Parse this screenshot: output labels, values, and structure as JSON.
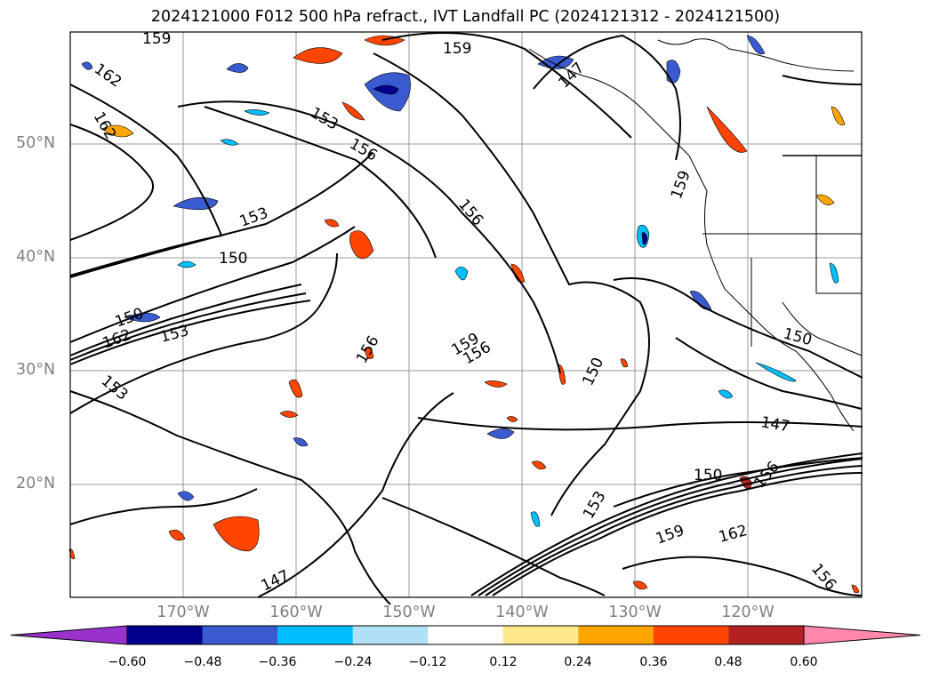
{
  "title": "2024121000 F012 500 hPa refract., IVT Landfall PC (2024121312 - 2024121500)",
  "map": {
    "lat_labels": [
      "50°N",
      "40°N",
      "30°N",
      "20°N"
    ],
    "lon_labels": [
      "170°W",
      "160°W",
      "150°W",
      "140°W",
      "130°W",
      "120°W"
    ],
    "contour_labels": [
      "159",
      "162",
      "162",
      "153",
      "156",
      "159",
      "156",
      "153",
      "150",
      "150",
      "162",
      "153",
      "153",
      "156",
      "159",
      "156",
      "150",
      "147",
      "159",
      "150",
      "147",
      "150",
      "156",
      "153",
      "159",
      "162",
      "156",
      "147"
    ],
    "contour_levels": [
      147,
      150,
      153,
      156,
      159,
      162
    ],
    "extent": {
      "lon_min": -180,
      "lon_max": -110,
      "lat_min": 10,
      "lat_max": 60
    }
  },
  "colorbar": {
    "ticks": [
      "−0.60",
      "−0.48",
      "−0.36",
      "−0.24",
      "−0.12",
      "0.12",
      "0.24",
      "0.36",
      "0.48",
      "0.60"
    ],
    "colors": [
      "#9932cc",
      "#00008b",
      "#3a5bd0",
      "#00bfff",
      "#b0e0f6",
      "#ffffff",
      "#ffe88a",
      "#ffa500",
      "#ff4500",
      "#b22222",
      "#ff88aa"
    ]
  }
}
